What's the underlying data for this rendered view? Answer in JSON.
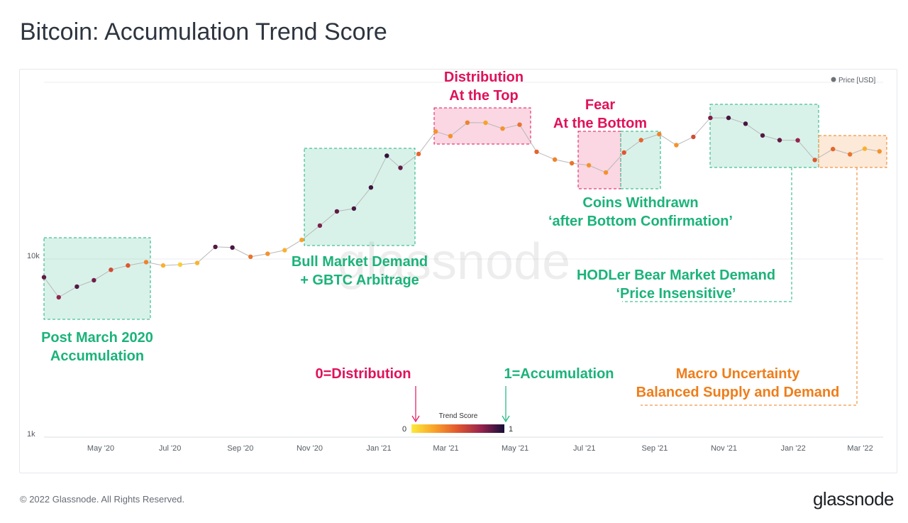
{
  "title": "Bitcoin: Accumulation Trend Score",
  "footer": "© 2022 Glassnode. All Rights Reserved.",
  "logo": "glassnode",
  "watermark": "glassnode",
  "colors": {
    "accumulation": "#1bb37a",
    "distribution": "#e0125a",
    "macro": "#ef7d1a",
    "title": "#2d3540"
  },
  "chart_data": {
    "type": "scatter",
    "legend": {
      "label": "Price [USD]",
      "position": "top-right"
    },
    "y_scale": "log",
    "y_ticks": [
      {
        "value": 1000,
        "label": "1k"
      },
      {
        "value": 10000,
        "label": "10k"
      }
    ],
    "x_ticks": [
      "May '20",
      "Jul '20",
      "Sep '20",
      "Nov '20",
      "Jan '21",
      "Mar '21",
      "May '21",
      "Jul '21",
      "Sep '21",
      "Nov '21",
      "Jan '22",
      "Mar '22"
    ],
    "colorbar": {
      "title": "Trend Score",
      "min_label": "0",
      "max_label": "1"
    },
    "series": [
      {
        "x": [
          "2020-03-12",
          "2020-03-25",
          "2020-04-10",
          "2020-04-25",
          "2020-05-10",
          "2020-05-25",
          "2020-06-10",
          "2020-06-25",
          "2020-07-10",
          "2020-07-25",
          "2020-08-10",
          "2020-08-25",
          "2020-09-10",
          "2020-09-25",
          "2020-10-10",
          "2020-10-25",
          "2020-11-10",
          "2020-11-25",
          "2020-12-10",
          "2020-12-25",
          "2021-01-08",
          "2021-01-20",
          "2021-02-05",
          "2021-02-20",
          "2021-03-05",
          "2021-03-20",
          "2021-04-05",
          "2021-04-20",
          "2021-05-05",
          "2021-05-20",
          "2021-06-05",
          "2021-06-20",
          "2021-07-05",
          "2021-07-20",
          "2021-08-05",
          "2021-08-20",
          "2021-09-05",
          "2021-09-20",
          "2021-10-05",
          "2021-10-20",
          "2021-11-05",
          "2021-11-20",
          "2021-12-05",
          "2021-12-20",
          "2022-01-05",
          "2022-01-20",
          "2022-02-05",
          "2022-02-20",
          "2022-03-05",
          "2022-03-18"
        ],
        "y": [
          7900,
          6100,
          7000,
          7600,
          8700,
          9200,
          9600,
          9200,
          9300,
          9500,
          11700,
          11600,
          10300,
          10700,
          11200,
          12800,
          15400,
          18500,
          19200,
          25200,
          38000,
          32500,
          38900,
          52000,
          49000,
          58300,
          58200,
          54000,
          56800,
          40000,
          36200,
          34500,
          33600,
          30600,
          39600,
          46500,
          50200,
          43600,
          48500,
          62000,
          62000,
          57500,
          49400,
          46500,
          46400,
          36000,
          41400,
          38700,
          41600,
          40200
        ],
        "score": [
          0.85,
          0.75,
          0.88,
          0.82,
          0.55,
          0.5,
          0.35,
          0.2,
          0.1,
          0.18,
          0.88,
          0.9,
          0.4,
          0.3,
          0.2,
          0.25,
          0.8,
          0.85,
          0.9,
          0.92,
          0.95,
          0.85,
          0.45,
          0.3,
          0.3,
          0.35,
          0.25,
          0.3,
          0.4,
          0.45,
          0.35,
          0.4,
          0.3,
          0.3,
          0.5,
          0.45,
          0.35,
          0.3,
          0.55,
          0.8,
          0.9,
          0.9,
          0.88,
          0.85,
          0.75,
          0.5,
          0.45,
          0.4,
          0.2,
          0.3
        ]
      }
    ],
    "annotations": [
      {
        "lines": [
          "Post March 2020",
          "Accumulation"
        ],
        "color": "accumulation"
      },
      {
        "lines": [
          "Bull Market Demand",
          "+ GBTC Arbitrage"
        ],
        "color": "accumulation"
      },
      {
        "lines": [
          "Distribution",
          "At the Top"
        ],
        "color": "distribution"
      },
      {
        "lines": [
          "Fear",
          "At the Bottom"
        ],
        "color": "distribution"
      },
      {
        "lines": [
          "Coins Withdrawn",
          "‘after Bottom Confirmation’"
        ],
        "color": "accumulation"
      },
      {
        "lines": [
          "HODLer Bear Market Demand",
          "‘Price Insensitive’"
        ],
        "color": "accumulation"
      },
      {
        "lines": [
          "Macro Uncertainty",
          "Balanced Supply and Demand"
        ],
        "color": "macro"
      },
      {
        "lines": [
          "0=Distribution"
        ],
        "color": "distribution"
      },
      {
        "lines": [
          "1=Accumulation"
        ],
        "color": "accumulation"
      }
    ]
  }
}
